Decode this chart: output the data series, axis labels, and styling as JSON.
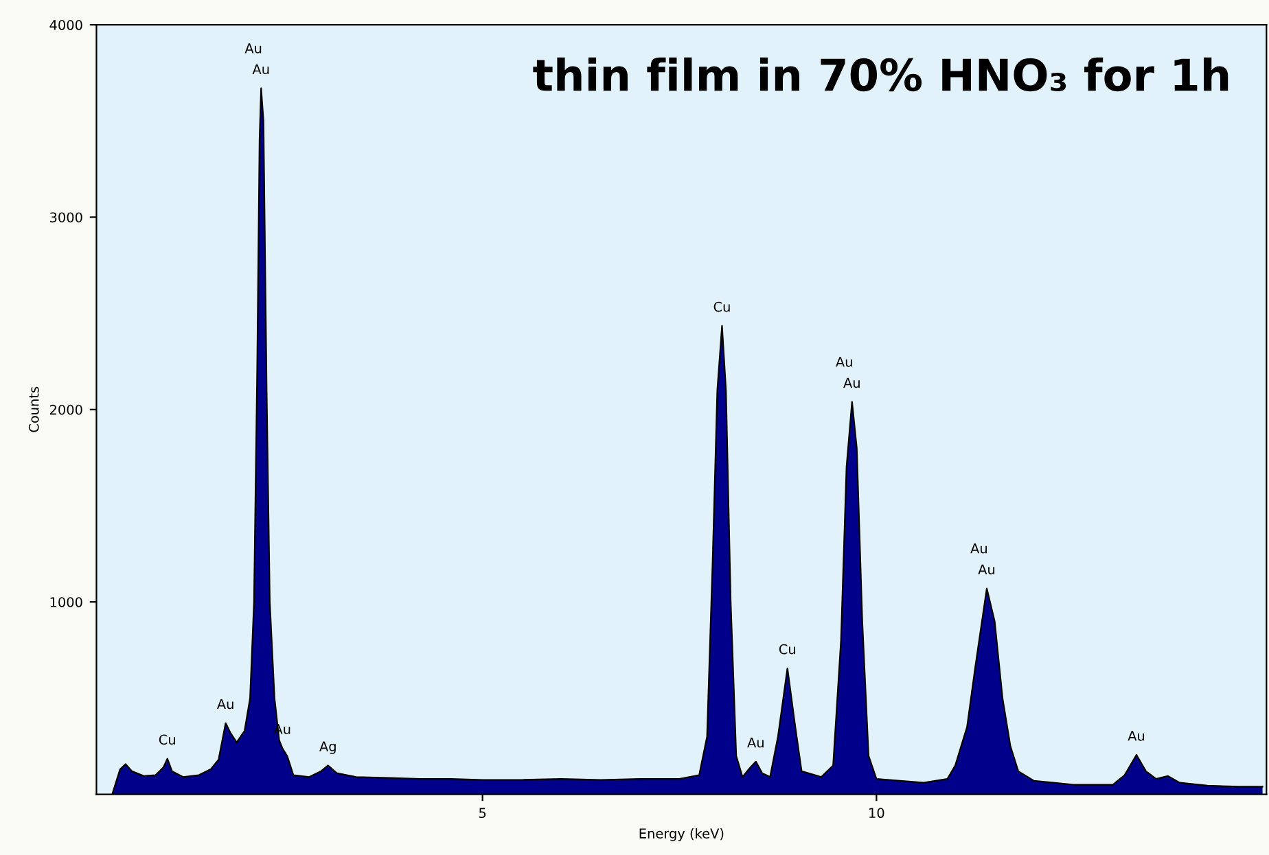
{
  "chart_data": {
    "type": "area",
    "title": "thin film in 70% HNO₃ for 1h",
    "xlabel": "Energy (keV)",
    "ylabel": "Counts",
    "xlim": [
      0.1,
      14.95
    ],
    "xticks": [
      5,
      10
    ],
    "ylim": [
      0,
      4000
    ],
    "yticks": [
      1000,
      2000,
      3000,
      4000
    ],
    "grid": false,
    "series": [
      {
        "color": "#00008b",
        "x": [
          0.3,
          0.4,
          0.47,
          0.55,
          0.7,
          0.85,
          0.95,
          1.0,
          1.06,
          1.2,
          1.4,
          1.55,
          1.65,
          1.74,
          1.8,
          1.88,
          1.98,
          2.05,
          2.1,
          2.14,
          2.17,
          2.19,
          2.22,
          2.26,
          2.3,
          2.36,
          2.42,
          2.46,
          2.52,
          2.6,
          2.8,
          2.95,
          3.04,
          3.15,
          3.4,
          3.8,
          4.2,
          4.6,
          5.0,
          5.5,
          6.0,
          6.5,
          7.0,
          7.5,
          7.75,
          7.85,
          7.92,
          7.98,
          8.04,
          8.09,
          8.15,
          8.22,
          8.3,
          8.4,
          8.47,
          8.55,
          8.65,
          8.75,
          8.87,
          8.97,
          9.05,
          9.3,
          9.45,
          9.55,
          9.62,
          9.69,
          9.75,
          9.82,
          9.9,
          10.0,
          10.3,
          10.6,
          10.9,
          11.0,
          11.15,
          11.25,
          11.4,
          11.5,
          11.6,
          11.7,
          11.8,
          12.0,
          12.5,
          13.0,
          13.15,
          13.3,
          13.42,
          13.55,
          13.7,
          13.85,
          14.2,
          14.6,
          14.9
        ],
        "values": [
          0,
          130,
          157,
          120,
          95,
          100,
          140,
          185,
          120,
          90,
          100,
          130,
          180,
          370,
          320,
          270,
          330,
          500,
          1000,
          2200,
          3400,
          3670,
          3500,
          2100,
          1000,
          500,
          280,
          240,
          200,
          100,
          90,
          120,
          150,
          110,
          90,
          85,
          80,
          80,
          75,
          75,
          80,
          75,
          80,
          80,
          100,
          300,
          1200,
          2100,
          2435,
          2100,
          1000,
          200,
          90,
          140,
          170,
          110,
          90,
          300,
          655,
          350,
          120,
          90,
          150,
          800,
          1700,
          2040,
          1800,
          900,
          200,
          80,
          70,
          60,
          80,
          150,
          350,
          650,
          1070,
          900,
          500,
          250,
          120,
          70,
          50,
          50,
          100,
          205,
          120,
          80,
          95,
          60,
          45,
          40,
          40
        ]
      }
    ],
    "annotations": [
      {
        "text": "Au",
        "x": 2.19,
        "y": 3670
      },
      {
        "text": "Au",
        "x": 2.19,
        "y": 3670
      },
      {
        "text": "Cu",
        "x": 1.0,
        "y": 185
      },
      {
        "text": "Au",
        "x": 1.74,
        "y": 370
      },
      {
        "text": "Au",
        "x": 2.46,
        "y": 240
      },
      {
        "text": "Ag",
        "x": 3.04,
        "y": 150
      },
      {
        "text": "Cu",
        "x": 8.04,
        "y": 2435
      },
      {
        "text": "Au",
        "x": 8.47,
        "y": 170
      },
      {
        "text": "Cu",
        "x": 8.87,
        "y": 655
      },
      {
        "text": "Au",
        "x": 9.69,
        "y": 2040
      },
      {
        "text": "Au",
        "x": 9.69,
        "y": 2040
      },
      {
        "text": "Au",
        "x": 11.4,
        "y": 1070
      },
      {
        "text": "Au",
        "x": 11.4,
        "y": 1070
      },
      {
        "text": "Au",
        "x": 13.3,
        "y": 205
      }
    ]
  }
}
